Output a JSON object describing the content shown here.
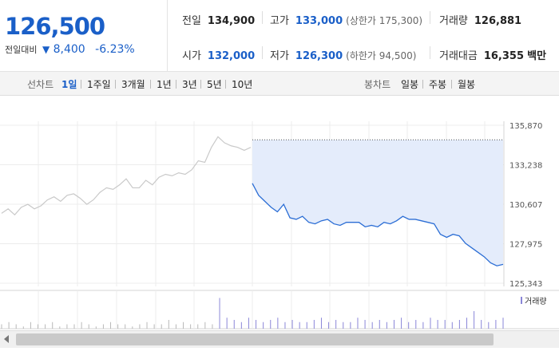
{
  "quote": {
    "price": "126,500",
    "change_label": "전일대비",
    "change_arrow": "▼",
    "change_value": "8,400",
    "change_pct": "-6.23%"
  },
  "stats": {
    "prev_label": "전일",
    "prev_value": "134,900",
    "high_label": "고가",
    "high_value": "133,000",
    "upper_limit": "(상한가 175,300)",
    "volume_label": "거래량",
    "volume_value": "126,881",
    "open_label": "시가",
    "open_value": "132,000",
    "low_label": "저가",
    "low_value": "126,300",
    "lower_limit": "(하한가 94,500)",
    "amount_label": "거래대금",
    "amount_value": "16,355",
    "amount_unit": "백만"
  },
  "tabs": {
    "line_label": "선차트",
    "line_periods": [
      "1일",
      "1주일",
      "3개월",
      "1년",
      "3년",
      "5년",
      "10년"
    ],
    "active_period": "1일",
    "candle_label": "봉차트",
    "candle_periods": [
      "일봉",
      "주봉",
      "월봉"
    ]
  },
  "chart_data": {
    "type": "line",
    "y_ticks": [
      "135,870",
      "133,238",
      "130,607",
      "127,975",
      "125,343"
    ],
    "ylim": [
      125343,
      135870
    ],
    "prev_close": 134900,
    "series": [
      {
        "values": [
          130000,
          130300,
          129900,
          130400,
          130600,
          130300,
          130500,
          130900,
          131100,
          130800,
          131200,
          131300,
          131000,
          130600,
          130900,
          131400,
          131700,
          131600,
          131900,
          132300,
          131700,
          131700,
          132200,
          131900,
          132400,
          132600,
          132500,
          132700,
          132600,
          132900,
          133500,
          133400,
          134400,
          135100,
          134700,
          134500,
          134400,
          134200,
          134400
        ]
      },
      {
        "values": [
          132000,
          131200,
          130800,
          130400,
          130100,
          130600,
          129700,
          129600,
          129800,
          129400,
          129300,
          129500,
          129600,
          129300,
          129200,
          129400,
          129400,
          129400,
          129100,
          129200,
          129100,
          129400,
          129300,
          129500,
          129800,
          129600,
          129600,
          129500,
          129400,
          129300,
          128600,
          128400,
          128600,
          128500,
          128000,
          127700,
          127400,
          127100,
          126700,
          126500,
          126600
        ]
      }
    ],
    "volume_label": "거래량",
    "volume": [
      2,
      3,
      2,
      1,
      3,
      2,
      2,
      3,
      1,
      2,
      2,
      3,
      2,
      1,
      2,
      3,
      2,
      2,
      1,
      2,
      3,
      2,
      2,
      4,
      2,
      3,
      2,
      2,
      3,
      2,
      14,
      5,
      4,
      3,
      5,
      4,
      3,
      4,
      5,
      3,
      4,
      3,
      3,
      4,
      5,
      3,
      4,
      3,
      3,
      5,
      4,
      3,
      4,
      3,
      4,
      5,
      3,
      4,
      3,
      5,
      4,
      4,
      3,
      4,
      5,
      8,
      4,
      3,
      4,
      5
    ]
  },
  "scrollbar": {
    "left_arrow": "left-arrow"
  }
}
